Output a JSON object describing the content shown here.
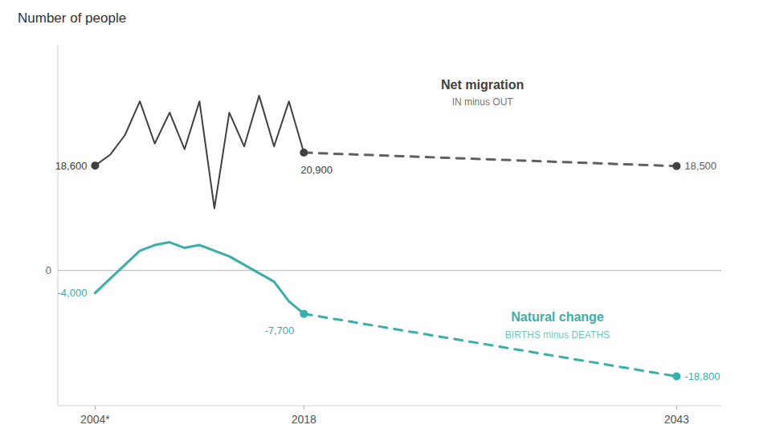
{
  "chart_data": {
    "type": "line",
    "title": "Number of people",
    "xlim": [
      2001.5,
      2046
    ],
    "ylim": [
      -24000,
      40000
    ],
    "xticks": [
      {
        "value": 2004,
        "label": "2004*"
      },
      2018,
      2043
    ],
    "yticks": [
      0
    ],
    "series": [
      {
        "type": "line",
        "line_style": "solid",
        "color": "#404040",
        "x": [
          2004,
          2005,
          2006,
          2007,
          2008,
          2009,
          2010,
          2011,
          2012,
          2013,
          2014,
          2015,
          2016,
          2017,
          2018
        ],
        "values": [
          18600,
          20500,
          24000,
          30000,
          22500,
          28000,
          21500,
          30000,
          11000,
          28000,
          22000,
          31000,
          22000,
          30000,
          20900
        ],
        "value_labels": [
          "18,600",
          null,
          null,
          null,
          null,
          null,
          null,
          null,
          null,
          null,
          null,
          null,
          null,
          null,
          "20,900"
        ]
      },
      {
        "type": "line",
        "line_style": "dashed",
        "color": "#606060",
        "x": [
          2018,
          2043
        ],
        "values": [
          20900,
          18500
        ],
        "value_labels": [
          null,
          "18,500"
        ]
      },
      {
        "type": "line",
        "line_style": "solid",
        "color": "#3aafa9",
        "x": [
          2004,
          2005,
          2006,
          2007,
          2008,
          2009,
          2010,
          2011,
          2012,
          2013,
          2014,
          2015,
          2016,
          2017,
          2018
        ],
        "values": [
          -4000,
          -1500,
          1000,
          3500,
          4500,
          5000,
          4000,
          4500,
          3500,
          2500,
          1000,
          -500,
          -2000,
          -5500,
          -7700
        ],
        "value_labels": [
          "-4,000",
          null,
          null,
          null,
          null,
          null,
          null,
          null,
          null,
          null,
          null,
          null,
          null,
          null,
          "-7,700"
        ]
      },
      {
        "type": "line",
        "line_style": "dashed",
        "color": "#3aafa9",
        "x": [
          2018,
          2043
        ],
        "values": [
          -7700,
          -18800
        ],
        "value_labels": [
          null,
          "-18,800"
        ]
      },
      {
        "type": "scatter",
        "marker": "circle",
        "color": "#404040",
        "x": [
          2004,
          2018,
          2043
        ],
        "values": [
          18600,
          20900,
          18500
        ]
      },
      {
        "type": "scatter",
        "marker": "circle",
        "color": "#3aafa9",
        "x": [
          2018,
          2043
        ],
        "values": [
          -7700,
          -18800
        ]
      }
    ],
    "annotations": [
      {
        "title": "Net migration",
        "text": "IN minus OUT",
        "color": "#404040"
      },
      {
        "title": "Natural change",
        "text": "BIRTHS minus DEATHS",
        "color": "#3aafa9"
      }
    ]
  }
}
